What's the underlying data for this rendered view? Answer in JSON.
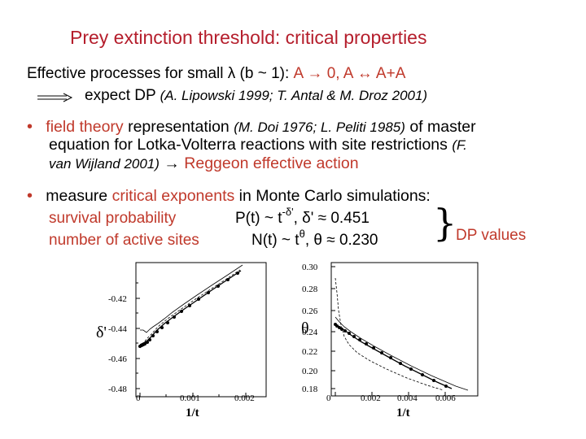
{
  "slide": {
    "title": "Prey extinction threshold: critical properties",
    "line1_pre": "Effective processes for small λ (b ~ 1): ",
    "line1_red": "A → 0, A ↔ A+A",
    "line2_main": "expect DP ",
    "line2_ref": "(A. Lipowski 1999; T. Antal & M. Droz 2001)",
    "bullet_char": "•",
    "b1_red": "field theory",
    "b1_rest": " representation ",
    "b1_ref1": "(M. Doi 1976; L. Peliti 1985)",
    "b1_tail": " of master",
    "b1_line2": "equation for Lotka-Volterra reactions with site restrictions ",
    "b1_ref2a": "(F.",
    "b1_ref2b": "van Wijland 2001)",
    "b1_arrow": " → ",
    "b1_red2": "Reggeon effective action",
    "b2_pre": "measure ",
    "b2_red": "critical exponents",
    "b2_rest": " in Monte Carlo simulations:",
    "row1_label": "survival probability",
    "row1_formula": "P(t) ~ t",
    "row1_sup": "-δ'",
    "row1_tail": ", δ' ≈ 0.451",
    "row2_label": "number of active sites",
    "row2_formula": "N(t) ~ t",
    "row2_sup": "θ",
    "row2_tail": ", θ ≈ 0.230",
    "brace": "}",
    "dp_values": "DP values"
  },
  "plots": {
    "left": {
      "ylabel": "δ'",
      "xlabel": "1/t",
      "yticks": [
        "-0.42",
        "-0.44",
        "-0.46",
        "-0.48"
      ],
      "xticks": [
        "0",
        "0.001",
        "0.002"
      ]
    },
    "right": {
      "ylabel": "θ",
      "xlabel": "1/t",
      "yticks": [
        "0.30",
        "0.28",
        "0.26",
        "0.24",
        "0.22",
        "0.20",
        "0.18"
      ],
      "xticks": [
        "0",
        "0.002",
        "0.004",
        "0.006"
      ]
    }
  },
  "colors": {
    "accent_red": "#c0392b",
    "title_red": "#b51e2c"
  }
}
